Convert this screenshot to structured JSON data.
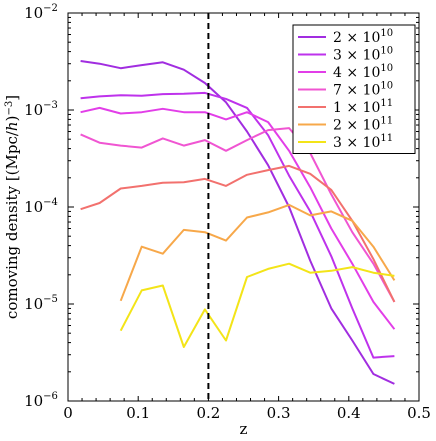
{
  "chart_data": {
    "type": "line",
    "xlabel": "z",
    "ylabel": "comoving density [(Mpc/h)^-3]",
    "ylabel_parts": {
      "main": "comoving density [(Mpc/",
      "h": "h",
      "close": ")",
      "exp": "−3",
      "end": "]"
    },
    "xlim": [
      0,
      0.5
    ],
    "ylim": [
      1e-06,
      0.01
    ],
    "yscale": "log",
    "x_ticks": [
      "0",
      "0.1",
      "0.2",
      "0.3",
      "0.4",
      "0.5"
    ],
    "x_tick_values": [
      0,
      0.1,
      0.2,
      0.3,
      0.4,
      0.5
    ],
    "y_ticks": [
      {
        "base": "10",
        "exp": "−2",
        "value": 0.01
      },
      {
        "base": "10",
        "exp": "−3",
        "value": 0.001
      },
      {
        "base": "10",
        "exp": "−4",
        "value": 0.0001
      },
      {
        "base": "10",
        "exp": "−5",
        "value": 1e-05
      },
      {
        "base": "10",
        "exp": "−6",
        "value": 1e-06
      }
    ],
    "grid": false,
    "legend_position": "top-right",
    "vline": {
      "x": 0.2,
      "style": "dashed",
      "color": "#000000"
    },
    "series": [
      {
        "name": "2 × 10^10",
        "label": {
          "mant": "2 × 10",
          "exp": "10"
        },
        "color": "#a12de0",
        "x": [
          0.018,
          0.045,
          0.075,
          0.105,
          0.135,
          0.165,
          0.195,
          0.225,
          0.255,
          0.285,
          0.315,
          0.345,
          0.375,
          0.405,
          0.435,
          0.465
        ],
        "y": [
          0.0032,
          0.003,
          0.0027,
          0.0029,
          0.0031,
          0.0026,
          0.0019,
          0.0012,
          0.0006,
          0.00027,
          0.0001,
          2.8e-05,
          9e-06,
          4.2e-06,
          1.9e-06,
          1.5e-06
        ]
      },
      {
        "name": "3 × 10^10",
        "label": {
          "mant": "3 × 10",
          "exp": "10"
        },
        "color": "#be32ec",
        "x": [
          0.018,
          0.045,
          0.075,
          0.105,
          0.135,
          0.165,
          0.195,
          0.225,
          0.255,
          0.285,
          0.315,
          0.345,
          0.375,
          0.405,
          0.435,
          0.465
        ],
        "y": [
          0.00132,
          0.00138,
          0.00142,
          0.0014,
          0.00146,
          0.00147,
          0.0015,
          0.0013,
          0.00105,
          0.00055,
          0.00021,
          9e-05,
          3.1e-05,
          9e-06,
          2.8e-06,
          2.9e-06
        ]
      },
      {
        "name": "4 × 10^10",
        "label": {
          "mant": "4 × 10",
          "exp": "10"
        },
        "color": "#e23ee8",
        "x": [
          0.018,
          0.045,
          0.075,
          0.105,
          0.135,
          0.165,
          0.195,
          0.225,
          0.255,
          0.285,
          0.315,
          0.345,
          0.375,
          0.405,
          0.435,
          0.465
        ],
        "y": [
          0.00095,
          0.00105,
          0.00092,
          0.00095,
          0.00103,
          0.00095,
          0.00095,
          0.0008,
          0.00095,
          0.00075,
          0.00038,
          0.00016,
          6e-05,
          2.6e-05,
          1.05e-05,
          5.5e-06
        ]
      },
      {
        "name": "7 × 10^10",
        "label": {
          "mant": "7 × 10",
          "exp": "10"
        },
        "color": "#f055d2",
        "x": [
          0.018,
          0.045,
          0.075,
          0.105,
          0.135,
          0.165,
          0.195,
          0.225,
          0.255,
          0.285,
          0.315,
          0.345,
          0.375,
          0.405,
          0.435,
          0.465
        ],
        "y": [
          0.00056,
          0.00046,
          0.00043,
          0.00041,
          0.00051,
          0.00043,
          0.00049,
          0.00038,
          0.00049,
          0.00062,
          0.00065,
          0.00036,
          0.000135,
          5.5e-05,
          2.6e-05,
          1.05e-05
        ]
      },
      {
        "name": "1 × 10^11",
        "label": {
          "mant": "1 × 10",
          "exp": "11"
        },
        "color": "#f2716e",
        "x": [
          0.018,
          0.045,
          0.075,
          0.105,
          0.135,
          0.165,
          0.195,
          0.225,
          0.255,
          0.285,
          0.315,
          0.345,
          0.375,
          0.405,
          0.435,
          0.465
        ],
        "y": [
          9.5e-05,
          0.00011,
          0.000155,
          0.000165,
          0.000178,
          0.00018,
          0.000195,
          0.000165,
          0.000215,
          0.00024,
          0.000265,
          0.00022,
          0.00015,
          7.2e-05,
          2.9e-05,
          1.05e-05
        ]
      },
      {
        "name": "2 × 10^11",
        "label": {
          "mant": "2 × 10",
          "exp": "11"
        },
        "color": "#f7a84a",
        "x": [
          0.075,
          0.105,
          0.135,
          0.165,
          0.195,
          0.225,
          0.255,
          0.285,
          0.315,
          0.345,
          0.375,
          0.405,
          0.435,
          0.465
        ],
        "y": [
          1.08e-05,
          3.9e-05,
          3.3e-05,
          5.8e-05,
          5.5e-05,
          4.5e-05,
          7.8e-05,
          8.8e-05,
          0.000105,
          8.2e-05,
          9e-05,
          7.2e-05,
          3.9e-05,
          1.75e-05
        ]
      },
      {
        "name": "3 × 10^11",
        "label": {
          "mant": "3 × 10",
          "exp": "11"
        },
        "color": "#f3e418",
        "x": [
          0.075,
          0.105,
          0.135,
          0.165,
          0.195,
          0.225,
          0.255,
          0.285,
          0.315,
          0.345,
          0.375,
          0.405,
          0.435,
          0.465
        ],
        "y": [
          5.3e-06,
          1.38e-05,
          1.55e-05,
          3.6e-06,
          8.8e-06,
          4.2e-06,
          1.9e-05,
          2.3e-05,
          2.6e-05,
          2.1e-05,
          2.2e-05,
          2.4e-05,
          2.1e-05,
          1.95e-05
        ]
      }
    ]
  }
}
